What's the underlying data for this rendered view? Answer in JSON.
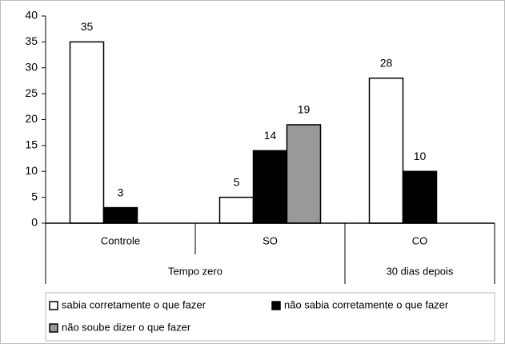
{
  "chart_data": {
    "type": "bar",
    "categories": [
      "Controle",
      "SO",
      "CO"
    ],
    "groups": [
      "Tempo zero",
      "Tempo zero",
      "30 dias depois"
    ],
    "series": [
      {
        "name": "sabia corretamente o que fazer",
        "color": "#ffffff",
        "values": [
          35,
          5,
          28
        ]
      },
      {
        "name": "não sabia corretamente o que fazer",
        "color": "#000000",
        "values": [
          3,
          14,
          10
        ]
      },
      {
        "name": "não soube dizer o que fazer",
        "color": "#999999",
        "values": [
          null,
          19,
          null
        ]
      }
    ],
    "ylim": [
      0,
      40
    ],
    "yticks": [
      0,
      5,
      10,
      15,
      20,
      25,
      30,
      35,
      40
    ],
    "grid": false,
    "legend": "bottom"
  }
}
